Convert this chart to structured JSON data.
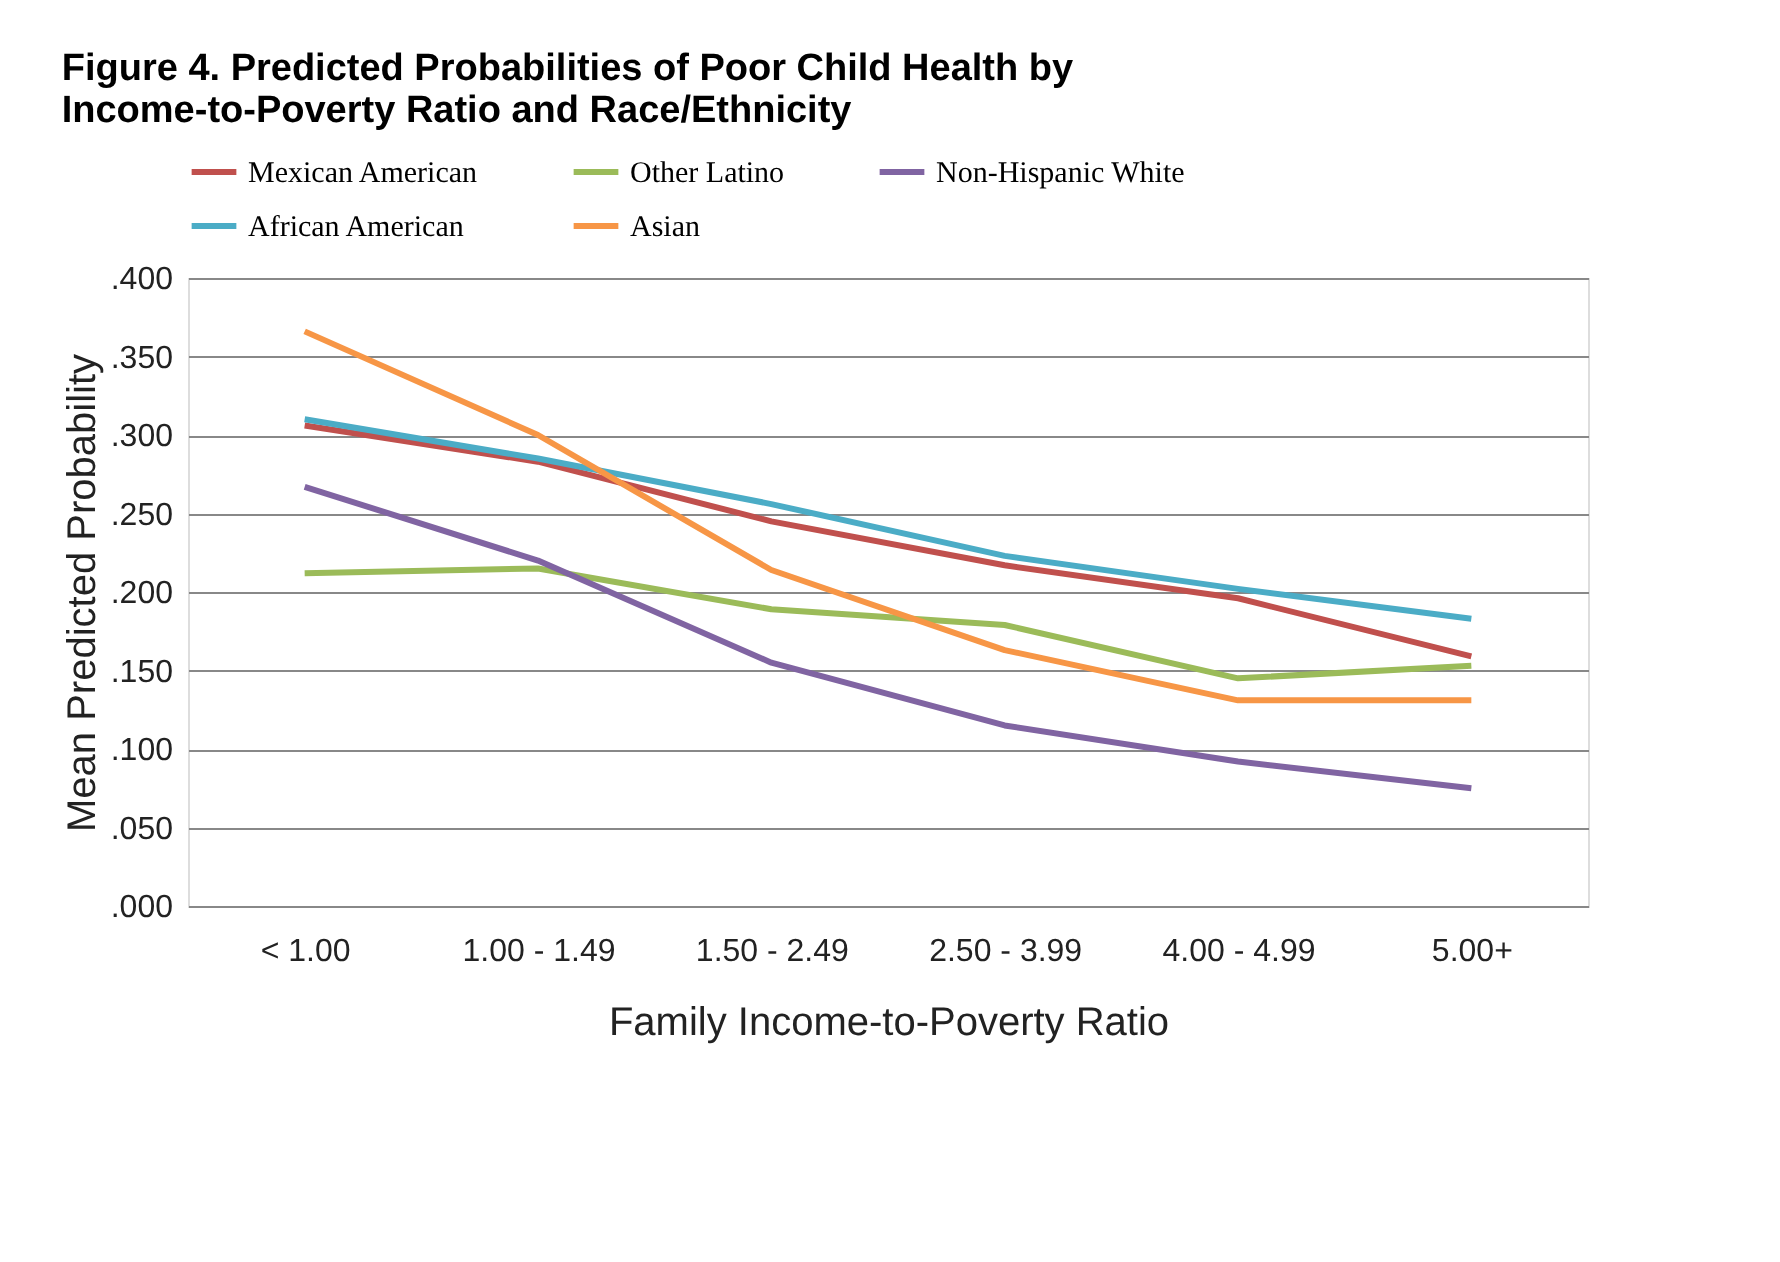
{
  "chart_data": {
    "type": "line",
    "title": "Figure 4. Predicted Probabilities of Poor Child Health by\nIncome-to-Poverty Ratio and Race/Ethnicity",
    "xlabel": "Family Income-to-Poverty Ratio",
    "ylabel": "Mean Predicted Probability",
    "categories": [
      "< 1.00",
      "1.00 - 1.49",
      "1.50 - 2.49",
      "2.50 - 3.99",
      "4.00 - 4.99",
      "5.00+"
    ],
    "series": [
      {
        "name": "Mexican American",
        "color": "#c0504d",
        "values": [
          0.306,
          0.283,
          0.245,
          0.217,
          0.196,
          0.159
        ]
      },
      {
        "name": "Other Latino",
        "color": "#9bbb59",
        "values": [
          0.212,
          0.215,
          0.189,
          0.179,
          0.145,
          0.153
        ]
      },
      {
        "name": "Non-Hispanic White",
        "color": "#8064a2",
        "values": [
          0.267,
          0.22,
          0.155,
          0.115,
          0.092,
          0.075
        ]
      },
      {
        "name": "African American",
        "color": "#4bacc6",
        "values": [
          0.31,
          0.285,
          0.256,
          0.223,
          0.202,
          0.183
        ]
      },
      {
        "name": "Asian",
        "color": "#f79646",
        "values": [
          0.366,
          0.3,
          0.214,
          0.163,
          0.131,
          0.131
        ]
      }
    ],
    "ylim": [
      0,
      0.4
    ],
    "yticks": [
      {
        "value": 0,
        "label": ".000"
      },
      {
        "value": 0.05,
        "label": ".050"
      },
      {
        "value": 0.1,
        "label": ".100"
      },
      {
        "value": 0.15,
        "label": ".150"
      },
      {
        "value": 0.2,
        "label": ".200"
      },
      {
        "value": 0.25,
        "label": ".250"
      },
      {
        "value": 0.3,
        "label": ".300"
      },
      {
        "value": 0.35,
        "label": ".350"
      },
      {
        "value": 0.4,
        "label": ".400"
      }
    ],
    "grid": "y",
    "legend": "top",
    "marker": "none",
    "line_style": "solid"
  }
}
